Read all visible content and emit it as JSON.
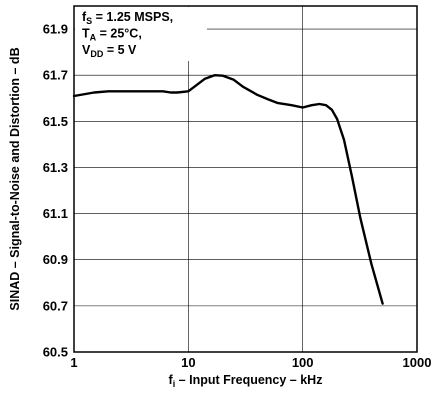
{
  "chart_data": {
    "type": "line",
    "x_scale": "log",
    "xlim": [
      1,
      1000
    ],
    "ylim": [
      60.5,
      62.0
    ],
    "grid": true,
    "xlabel": {
      "main": "f",
      "sub": "i",
      "rest": " – Input Frequency – kHz"
    },
    "ylabel": "SINAD – Signal-to-Noise and Distortion – dB",
    "x_ticks": [
      "1",
      "10",
      "100",
      "1000"
    ],
    "y_ticks": [
      "61.9",
      "61.7",
      "61.5",
      "61.3",
      "61.1",
      "60.9",
      "60.7",
      "60.5"
    ],
    "annotation": [
      {
        "main": "f",
        "sub": "S",
        "rest": " = 1.25 MSPS,"
      },
      {
        "main": "T",
        "sub": "A",
        "rest": " = 25°C,"
      },
      {
        "main": "V",
        "sub": "DD",
        "rest": " = 5 V"
      }
    ],
    "series": [
      {
        "x": [
          1,
          1.5,
          2,
          3,
          4,
          5,
          6,
          7,
          8,
          10,
          12,
          14,
          17,
          20,
          25,
          30,
          40,
          50,
          60,
          80,
          100,
          120,
          140,
          160,
          180,
          200,
          230,
          270,
          320,
          400,
          500
        ],
        "y": [
          61.61,
          61.625,
          61.63,
          61.63,
          61.63,
          61.63,
          61.63,
          61.625,
          61.625,
          61.63,
          61.66,
          61.685,
          61.7,
          61.698,
          61.68,
          61.65,
          61.615,
          61.595,
          61.58,
          61.57,
          61.56,
          61.57,
          61.575,
          61.57,
          61.55,
          61.51,
          61.42,
          61.26,
          61.08,
          60.88,
          60.71
        ]
      }
    ]
  }
}
